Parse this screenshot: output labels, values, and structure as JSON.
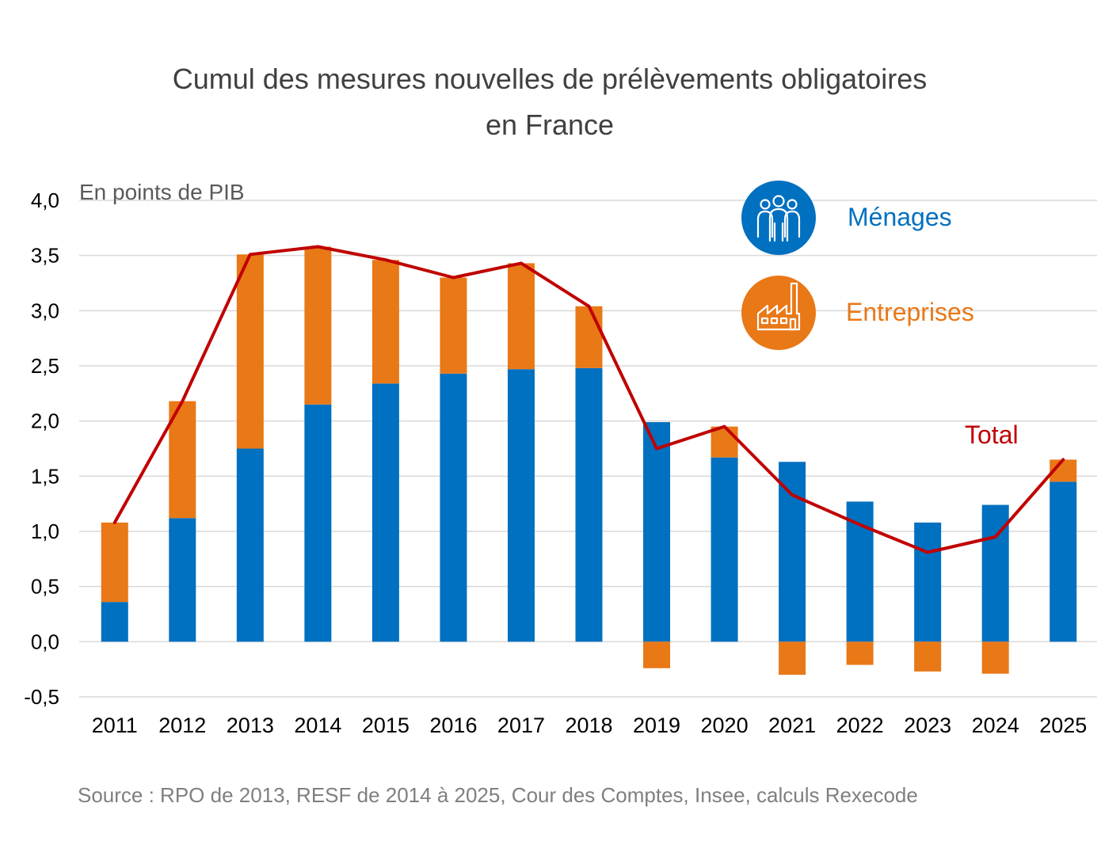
{
  "chart_data": {
    "type": "bar",
    "stacked": true,
    "title_lines": [
      "Cumul des mesures nouvelles de prélèvements obligatoires",
      "en France"
    ],
    "ylabel": "En points de PIB",
    "xlabel": "",
    "ylim": [
      -0.5,
      4.0
    ],
    "y_ticks": [
      -0.5,
      0,
      0.5,
      1,
      1.5,
      2,
      2.5,
      3,
      3.5,
      4
    ],
    "y_tick_labels": [
      "-0,5",
      "0,0",
      "0,5",
      "1,0",
      "1,5",
      "2,0",
      "2,5",
      "3,0",
      "3,5",
      "4,0"
    ],
    "grid": true,
    "categories": [
      "2011",
      "2012",
      "2013",
      "2014",
      "2015",
      "2016",
      "2017",
      "2018",
      "2019",
      "2020",
      "2021",
      "2022",
      "2023",
      "2024",
      "2025"
    ],
    "series": [
      {
        "name": "Ménages",
        "type": "bar",
        "color": "#0070C0",
        "icon": "households-icon",
        "values": [
          0.36,
          1.12,
          1.75,
          2.15,
          2.34,
          2.43,
          2.47,
          2.48,
          1.99,
          1.67,
          1.63,
          1.27,
          1.08,
          1.24,
          1.45
        ]
      },
      {
        "name": "Entreprises",
        "type": "bar",
        "color": "#E97817",
        "icon": "factory-icon",
        "values": [
          0.72,
          1.06,
          1.76,
          1.43,
          1.12,
          0.87,
          0.96,
          0.56,
          -0.24,
          0.28,
          -0.3,
          -0.21,
          -0.27,
          -0.29,
          0.2
        ]
      },
      {
        "name": "Total",
        "type": "line",
        "color": "#C00000",
        "values": [
          1.08,
          2.18,
          3.51,
          3.58,
          3.46,
          3.3,
          3.43,
          3.04,
          1.75,
          1.95,
          1.33,
          1.06,
          0.81,
          0.95,
          1.65
        ]
      }
    ],
    "legend": {
      "position": "top-right"
    }
  },
  "source": "Source : RPO de 2013, RESF de 2014 à 2025, Cour des Comptes, Insee, calculs Rexecode"
}
